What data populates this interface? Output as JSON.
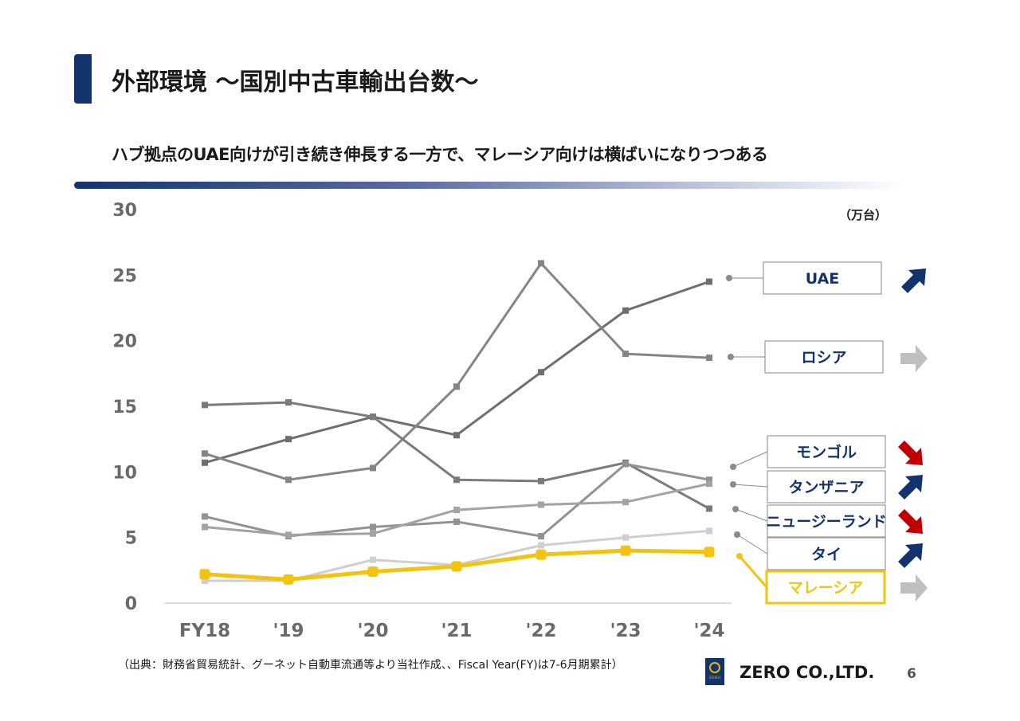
{
  "header": {
    "title": "外部環境 ～国別中古車輸出台数～",
    "subtitle": "ハブ拠点のUAE向けが引き続き伸長する一方で、マレーシア向けは横ばいになりつつある"
  },
  "chart_data": {
    "type": "line",
    "unit_label": "（万台）",
    "categories": [
      "FY18",
      "'19",
      "'20",
      "'21",
      "'22",
      "'23",
      "'24"
    ],
    "ylim": [
      0,
      30
    ],
    "yticks": [
      0,
      5,
      10,
      15,
      20,
      25,
      30
    ],
    "grid": false,
    "series": [
      {
        "name": "UAE",
        "values": [
          10.7,
          12.5,
          14.2,
          12.8,
          17.6,
          22.3,
          24.5
        ],
        "color": "#6f6f6f",
        "trend": "up"
      },
      {
        "name": "ロシア",
        "values": [
          11.4,
          9.4,
          10.3,
          16.5,
          25.9,
          19.0,
          18.7
        ],
        "color": "#858585",
        "trend": "flat"
      },
      {
        "name": "モンゴル",
        "values": [
          15.1,
          15.3,
          14.2,
          9.4,
          9.3,
          10.7,
          7.2
        ],
        "color": "#7b7b7b",
        "trend": "down"
      },
      {
        "name": "タンザニア",
        "values": [
          6.6,
          5.1,
          5.8,
          6.2,
          5.1,
          10.6,
          9.4
        ],
        "color": "#929292",
        "trend": "up"
      },
      {
        "name": "ニュージーランド",
        "values": [
          5.8,
          5.2,
          5.3,
          7.1,
          7.5,
          7.7,
          9.1
        ],
        "color": "#a3a3a3",
        "trend": "down"
      },
      {
        "name": "タイ",
        "values": [
          1.7,
          1.7,
          3.3,
          2.9,
          4.4,
          5.0,
          5.5
        ],
        "color": "#cfcfcf",
        "trend": "up"
      },
      {
        "name": "マレーシア",
        "values": [
          2.2,
          1.8,
          2.4,
          2.8,
          3.7,
          4.0,
          3.9
        ],
        "color": "#f2c40f",
        "trend": "flat",
        "highlight": true
      }
    ]
  },
  "legend_colors": {
    "up": "#13336e",
    "down": "#c00000",
    "flat": "#bfbfbf",
    "highlight_border": "#f2c40f",
    "label_text": "#13336e"
  },
  "footer": {
    "source": "（出典：財務省貿易統計、グーネット自動車流通等より当社作成、、Fiscal Year(FY)は7-6月期累計）",
    "company": "ZERO CO.,LTD.",
    "page": "6",
    "logo_text": "ZERO"
  }
}
